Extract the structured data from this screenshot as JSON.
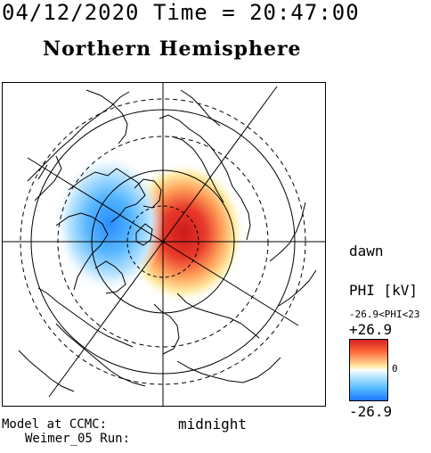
{
  "header": {
    "datetime": "04/12/2020 Time = 20:47:00",
    "hemisphere": "Northern Hemisphere"
  },
  "map": {
    "labels": {
      "dawn": "dawn",
      "midnight": "midnight"
    },
    "footer": {
      "line1": "Model at CCMC:",
      "line2": "Weimer_05 Run:"
    },
    "potential_cells": [
      {
        "name": "positive",
        "sign": "+",
        "color": "#d62020"
      },
      {
        "name": "negative",
        "sign": "-",
        "color": "#1f78ff"
      }
    ]
  },
  "colorbar": {
    "title": "PHI [kV]",
    "range_text": "-26.9<PHI<23",
    "max_label": "+26.9",
    "zero_label": "0",
    "min_label": "-26.9",
    "colors": {
      "high": "#d62020",
      "mid": "#ffffff",
      "low": "#1f78ff"
    }
  }
}
